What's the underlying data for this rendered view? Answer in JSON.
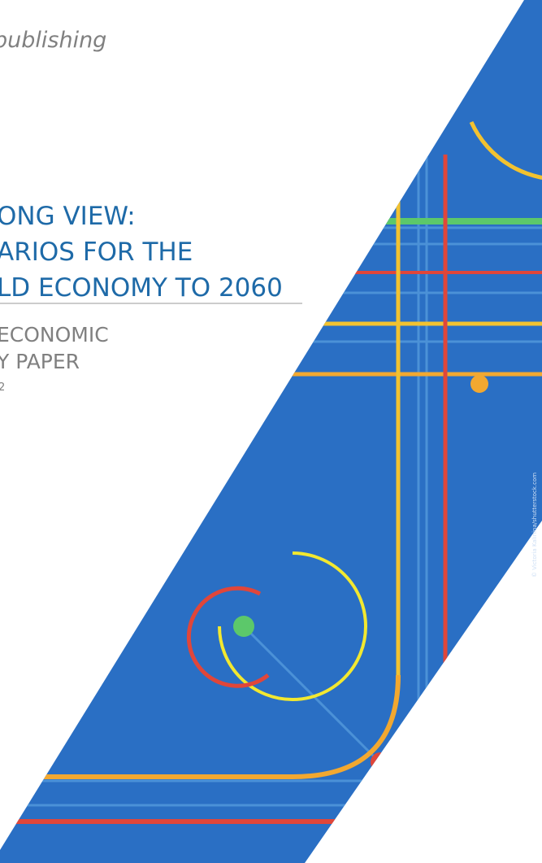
{
  "header": {
    "publisher": "publishing"
  },
  "title": {
    "lines": [
      "ONG VIEW:",
      "ARIOS FOR THE",
      "LD ECONOMY TO 2060"
    ]
  },
  "series": {
    "lines": [
      "ECONOMIC",
      "Y PAPER"
    ],
    "number": "2"
  },
  "credit": "© Victoria Kalinina/shutterstock.com"
}
